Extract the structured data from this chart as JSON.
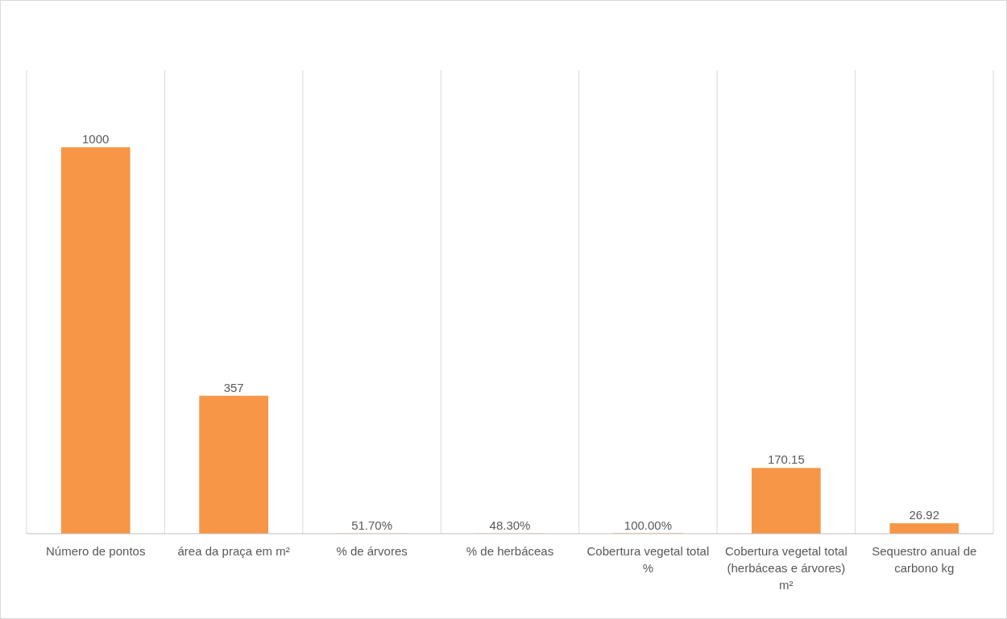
{
  "chart_data": {
    "type": "bar",
    "categories": [
      "Número de pontos",
      "área da praça em m²",
      "% de árvores",
      "% de herbáceas",
      "Cobertura vegetal total %",
      "Cobertura vegetal total (herbáceas e árvores) m²",
      "Sequestro anual de carbono kg"
    ],
    "values": [
      1000,
      357,
      0.517,
      0.483,
      1,
      170.15,
      26.92
    ],
    "value_labels": [
      "1000",
      "357",
      "51.70%",
      "48.30%",
      "100.00%",
      "170.15",
      "26.92"
    ],
    "color": "#f79646",
    "ylim": [
      0,
      1200
    ],
    "grid": "x"
  }
}
